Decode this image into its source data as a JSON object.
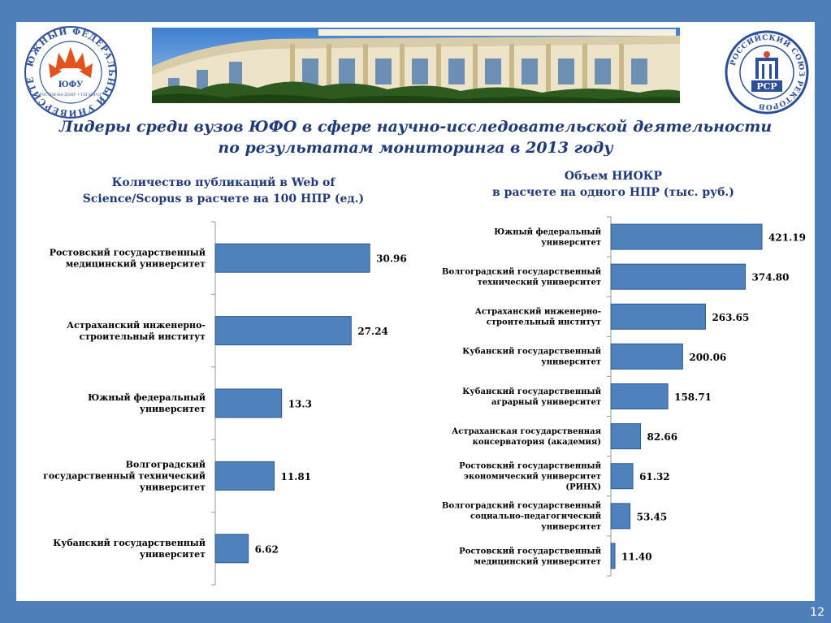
{
  "page": {
    "title_line1": "Лидеры среди вузов ЮФО  в сфере научно-исследовательской деятельности",
    "title_line2": "по результатам мониторинга в 2013 году",
    "page_number": "12"
  },
  "logos": {
    "left": {
      "ring_text": "ЮЖНЫЙ ФЕДЕРАЛЬНЫЙ УНИВЕРСИТЕТ",
      "abbr": "ЮФУ",
      "city": "РОСТОВ-НА-ДОНУ • ТАГАНРОГ",
      "icon": "sfedu-logo-icon"
    },
    "right": {
      "ring_text": "РОССИЙСКИЙ СОЮЗ РЕКТОРОВ",
      "abbr": "РСР",
      "icon": "rsr-logo-icon"
    }
  },
  "colors": {
    "bar": "#4f81bd",
    "bar_edge": "#2e5a8e",
    "title": "#1f3a78",
    "frame": "#4f7fb8"
  },
  "chart_data": [
    {
      "type": "bar",
      "orientation": "horizontal",
      "title_line1": "Количество публикаций в Web of",
      "title_line2": "Science/Scopus в расчете на 100 НПР (ед.)",
      "categories": [
        "Ростовский государственный медицинский университет",
        "Астраханский инженерно-строительный институт",
        "Южный федеральный университет",
        "Волгоградский государственный технический университет",
        "Кубанский государственный университет"
      ],
      "category_lines": [
        [
          "Ростовский государственный",
          "медицинский университет"
        ],
        [
          "Астраханский инженерно-",
          "строительный институт"
        ],
        [
          "Южный федеральный",
          "университет"
        ],
        [
          "Волгоградский",
          "государственный технический",
          "университет"
        ],
        [
          "Кубанский государственный",
          "университет"
        ]
      ],
      "values": [
        30.96,
        27.24,
        13.3,
        11.81,
        6.62
      ],
      "labels": [
        "30.96",
        "27.24",
        "13.3",
        "11.81",
        "6.62"
      ],
      "xlim": [
        0,
        35
      ],
      "grid": false
    },
    {
      "type": "bar",
      "orientation": "horizontal",
      "title_line1": "Объем НИОКР",
      "title_line2": "в расчете на одного НПР (тыс. руб.)",
      "categories": [
        "Южный федеральный университет",
        "Волгоградский государственный технический университет",
        "Астраханский инженерно-строительный институт",
        "Кубанский государственный университет",
        "Кубанский государственный аграрный университет",
        "Астраханская государственная консерватория (академия)",
        "Ростовский государственный экономический университет (РИНХ)",
        "Волгоградский государственный социально-педагогический университет",
        "Ростовский государственный медицинский университет"
      ],
      "category_lines": [
        [
          "Южный федеральный",
          "университет"
        ],
        [
          "Волгоградский государственный",
          "технический университет"
        ],
        [
          "Астраханский инженерно-",
          "строительный институт"
        ],
        [
          "Кубанский государственный",
          "университет"
        ],
        [
          "Кубанский государственный",
          "аграрный университет"
        ],
        [
          "Астраханская государственная",
          "консерватория (академия)"
        ],
        [
          "Ростовский государственный",
          "экономический университет",
          "(РИНХ)"
        ],
        [
          "Волгоградский государственный",
          "социально-педагогический",
          "университет"
        ],
        [
          "Ростовский государственный",
          "медицинский университет"
        ]
      ],
      "values": [
        421.19,
        374.8,
        263.65,
        200.06,
        158.71,
        82.66,
        61.32,
        53.45,
        11.4
      ],
      "labels": [
        "421.19",
        "374.80",
        "263.65",
        "200.06",
        "158.71",
        "82.66",
        "61.32",
        "53.45",
        "11.40"
      ],
      "xlim": [
        0,
        480
      ],
      "grid": false
    }
  ]
}
